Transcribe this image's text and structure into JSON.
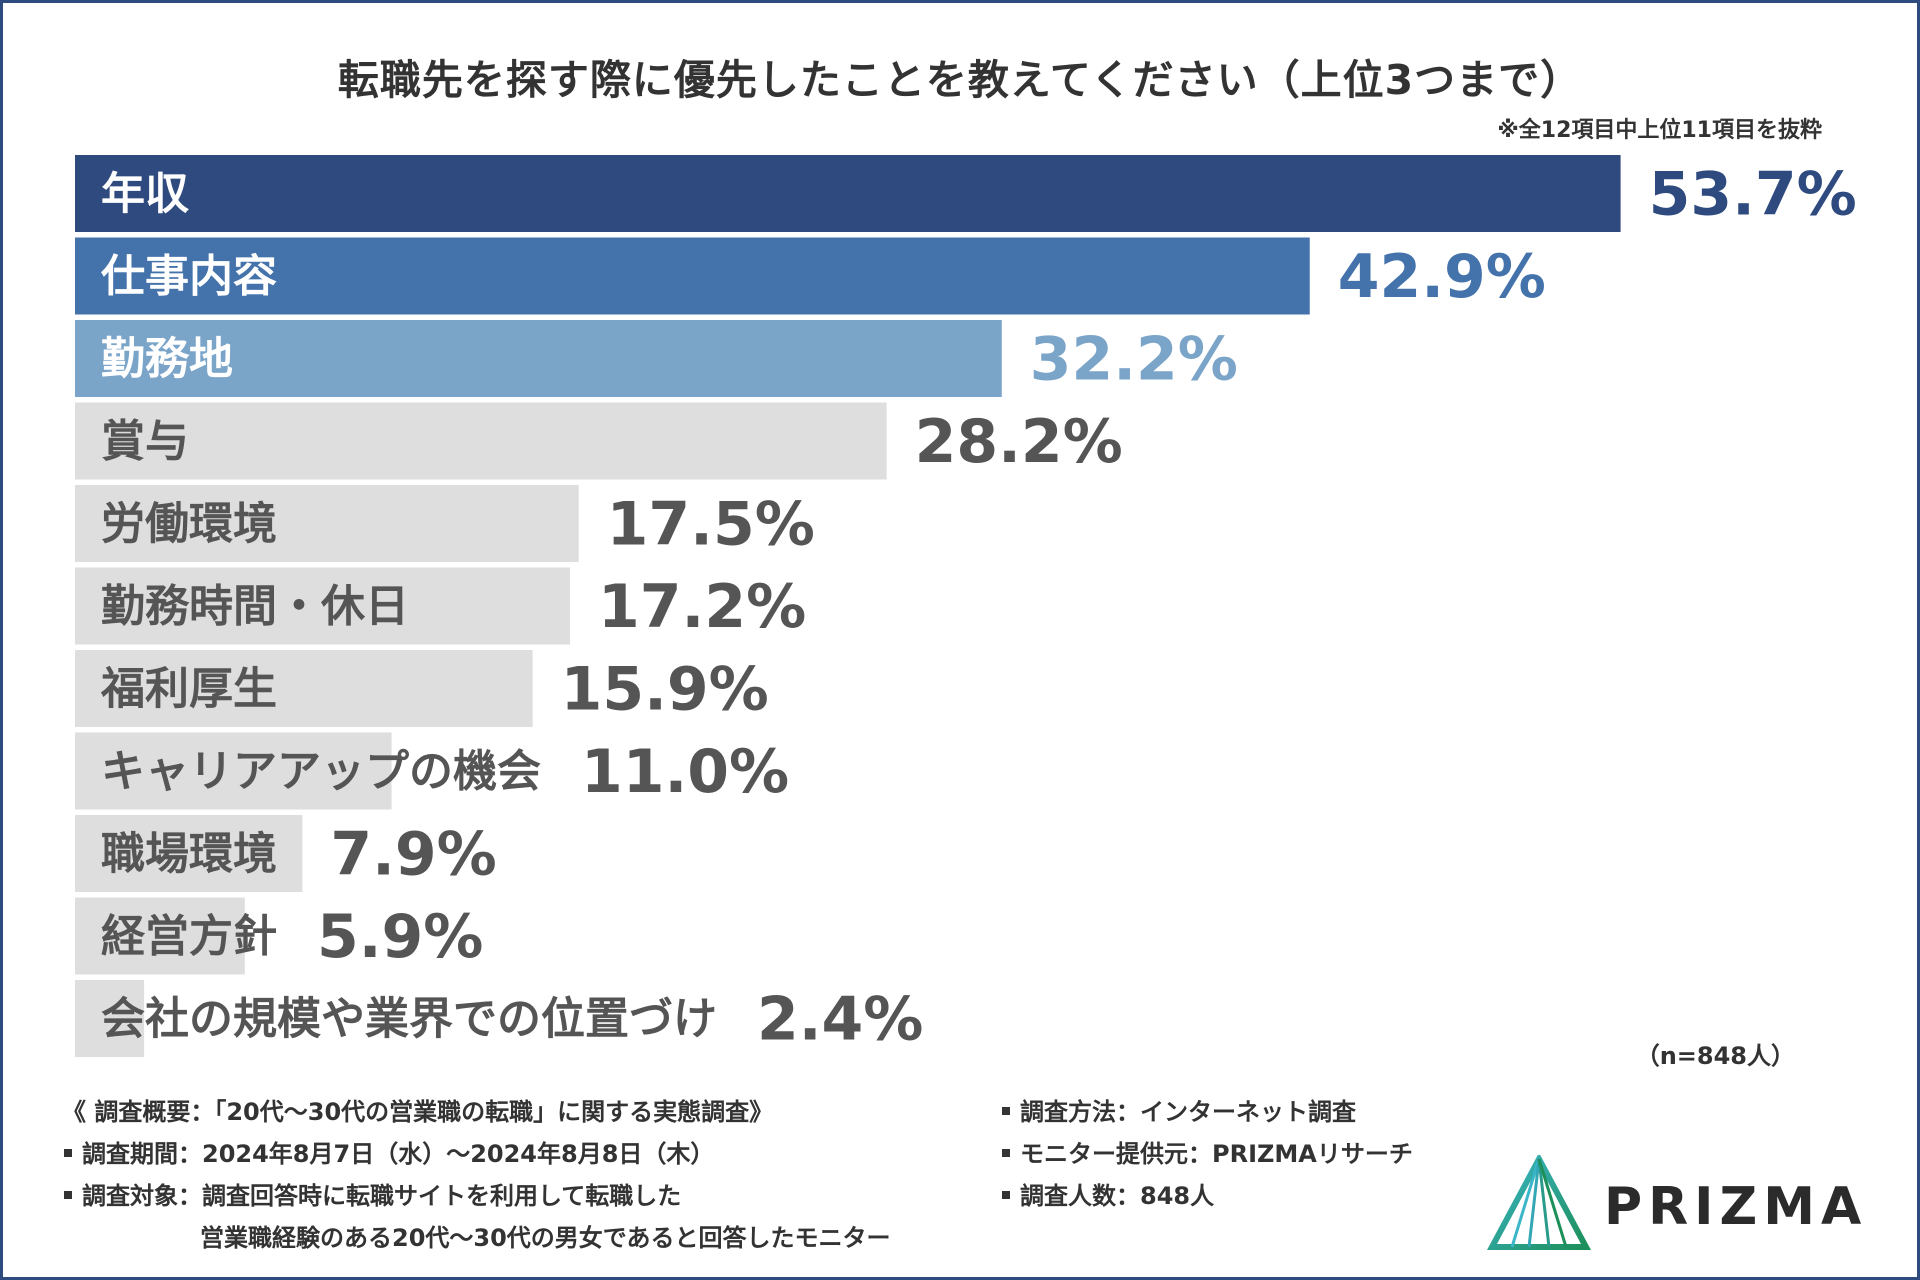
{
  "title": "転職先を探す際に優先したことを教えてください（上位3つまで）",
  "note": "※全12項目中上位11項目を抜粋",
  "sample_note": "（n=848人）",
  "colors": {
    "frame": "#2e4a7f",
    "top1": "#2e4a7f",
    "top2": "#4472ab",
    "top3": "#7ba4c9",
    "other_bar": "#dedede",
    "other_text": "#555555",
    "title_text": "#333333"
  },
  "chart_data": {
    "type": "bar",
    "orientation": "horizontal",
    "title": "転職先を探す際に優先したことを教えてください（上位3つまで）",
    "unit": "%",
    "xlim": [
      0,
      55
    ],
    "categories": [
      "年収",
      "仕事内容",
      "勤務地",
      "賞与",
      "労働環境",
      "勤務時間・休日",
      "福利厚生",
      "キャリアアップの機会",
      "職場環境",
      "経営方針",
      "会社の規模や業界での位置づけ"
    ],
    "values": [
      53.7,
      42.9,
      32.2,
      28.2,
      17.5,
      17.2,
      15.9,
      11.0,
      7.9,
      5.9,
      2.4
    ],
    "value_labels": [
      "53.7%",
      "42.9%",
      "32.2%",
      "28.2%",
      "17.5%",
      "17.2%",
      "15.9%",
      "11.0%",
      "7.9%",
      "5.9%",
      "2.4%"
    ]
  },
  "footer": {
    "overview": "《 調査概要：「20代〜30代の営業職の転職」に関する実態調査》",
    "period": "調査期間：2024年8月7日（水）〜2024年8月8日（木）",
    "target_line1": "調査対象：調査回答時に転職サイトを利用して転職した",
    "target_line2": "営業職経験のある20代〜30代の男女であると回答したモニター",
    "method": "調査方法：インターネット調査",
    "provider": "モニター提供元：PRIZMAリサーチ",
    "count": "調査人数：848人"
  },
  "logo": {
    "icon": "prizma-triangle-logo-icon",
    "text": "PRIZMA"
  }
}
